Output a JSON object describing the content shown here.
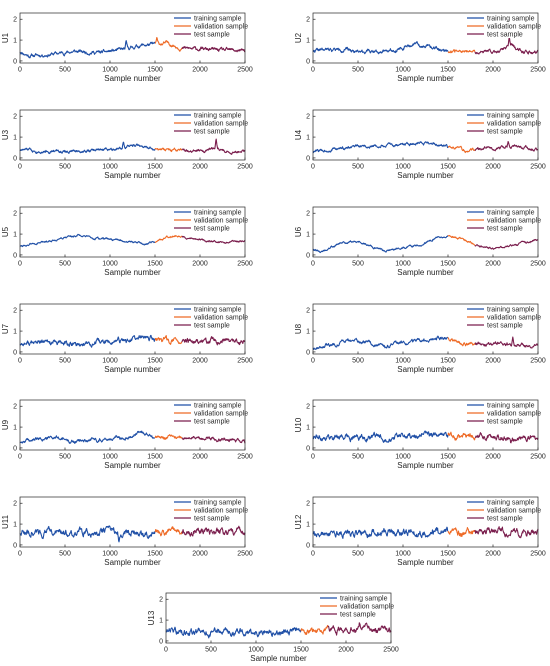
{
  "chart_data": {
    "type": "line",
    "xlabel": "Sample number",
    "x_range": [
      0,
      2500
    ],
    "x_ticks": [
      "0",
      "500",
      "1000",
      "1500",
      "2000",
      "2500"
    ],
    "y_range": [
      -0.1,
      2.3
    ],
    "y_ticks": [
      "0",
      "1",
      "2"
    ],
    "grid": false,
    "legend_position": "top-right",
    "legend": [
      "training sample",
      "validation sample",
      "test sample"
    ],
    "segments": {
      "training": [
        0,
        1500
      ],
      "validation": [
        1500,
        1800
      ],
      "test": [
        1800,
        2500
      ]
    },
    "colors": {
      "training": "#1f4fa6",
      "validation": "#ee6a26",
      "test": "#7a1e4d",
      "axis": "#262626"
    },
    "panels": [
      {
        "ylabel": "U1",
        "base": 0.45,
        "trend": [
          [
            0,
            0.45
          ],
          [
            100,
            0.25
          ],
          [
            300,
            0.3
          ],
          [
            600,
            0.45
          ],
          [
            900,
            0.4
          ],
          [
            1150,
            0.55
          ],
          [
            1350,
            0.75
          ],
          [
            1500,
            0.8
          ],
          [
            1650,
            0.85
          ],
          [
            1800,
            0.6
          ],
          [
            2100,
            0.55
          ],
          [
            2300,
            0.5
          ],
          [
            2500,
            0.5
          ]
        ],
        "noise": 0.07,
        "seed": 11,
        "spikes": [
          [
            1180,
            0.3
          ],
          [
            1520,
            0.25
          ]
        ]
      },
      {
        "ylabel": "U2",
        "base": 0.5,
        "trend": [
          [
            0,
            0.5
          ],
          [
            300,
            0.55
          ],
          [
            600,
            0.45
          ],
          [
            900,
            0.55
          ],
          [
            1150,
            0.8
          ],
          [
            1300,
            0.65
          ],
          [
            1500,
            0.5
          ],
          [
            1800,
            0.4
          ],
          [
            2100,
            0.5
          ],
          [
            2200,
            0.75
          ],
          [
            2350,
            0.45
          ],
          [
            2500,
            0.35
          ]
        ],
        "noise": 0.07,
        "seed": 22,
        "spikes": [
          [
            2180,
            0.35
          ]
        ]
      },
      {
        "ylabel": "U3",
        "base": 0.35,
        "trend": [
          [
            0,
            0.4
          ],
          [
            200,
            0.35
          ],
          [
            500,
            0.3
          ],
          [
            800,
            0.35
          ],
          [
            1100,
            0.5
          ],
          [
            1300,
            0.6
          ],
          [
            1500,
            0.4
          ],
          [
            1700,
            0.35
          ],
          [
            1900,
            0.3
          ],
          [
            2150,
            0.45
          ],
          [
            2300,
            0.3
          ],
          [
            2500,
            0.3
          ]
        ],
        "noise": 0.06,
        "seed": 33,
        "spikes": [
          [
            1150,
            0.35
          ],
          [
            2180,
            0.45
          ]
        ]
      },
      {
        "ylabel": "U4",
        "base": 0.45,
        "trend": [
          [
            0,
            0.3
          ],
          [
            300,
            0.45
          ],
          [
            600,
            0.55
          ],
          [
            900,
            0.6
          ],
          [
            1100,
            0.7
          ],
          [
            1300,
            0.75
          ],
          [
            1500,
            0.5
          ],
          [
            1700,
            0.35
          ],
          [
            1900,
            0.45
          ],
          [
            2100,
            0.5
          ],
          [
            2300,
            0.55
          ],
          [
            2500,
            0.35
          ]
        ],
        "noise": 0.06,
        "seed": 44,
        "spikes": [
          [
            2170,
            0.3
          ]
        ]
      },
      {
        "ylabel": "U5",
        "base": 0.65,
        "trend": [
          [
            0,
            0.45
          ],
          [
            200,
            0.55
          ],
          [
            500,
            0.85
          ],
          [
            650,
            0.95
          ],
          [
            800,
            0.8
          ],
          [
            1100,
            0.7
          ],
          [
            1400,
            0.55
          ],
          [
            1550,
            0.7
          ],
          [
            1700,
            0.95
          ],
          [
            1850,
            0.85
          ],
          [
            2100,
            0.65
          ],
          [
            2300,
            0.6
          ],
          [
            2500,
            0.7
          ]
        ],
        "noise": 0.04,
        "seed": 55,
        "spikes": []
      },
      {
        "ylabel": "U6",
        "base": 0.5,
        "trend": [
          [
            0,
            0.3
          ],
          [
            100,
            0.15
          ],
          [
            300,
            0.55
          ],
          [
            450,
            0.65
          ],
          [
            600,
            0.5
          ],
          [
            800,
            0.2
          ],
          [
            1000,
            0.35
          ],
          [
            1200,
            0.5
          ],
          [
            1400,
            0.85
          ],
          [
            1500,
            0.9
          ],
          [
            1650,
            0.75
          ],
          [
            1800,
            0.5
          ],
          [
            2000,
            0.3
          ],
          [
            2200,
            0.45
          ],
          [
            2350,
            0.6
          ],
          [
            2500,
            0.75
          ]
        ],
        "noise": 0.04,
        "seed": 66,
        "spikes": []
      },
      {
        "ylabel": "U7",
        "base": 0.45,
        "trend": [
          [
            0,
            0.4
          ],
          [
            300,
            0.45
          ],
          [
            600,
            0.35
          ],
          [
            900,
            0.45
          ],
          [
            1200,
            0.55
          ],
          [
            1400,
            0.7
          ],
          [
            1500,
            0.6
          ],
          [
            1700,
            0.55
          ],
          [
            1800,
            0.45
          ],
          [
            2100,
            0.5
          ],
          [
            2300,
            0.5
          ],
          [
            2500,
            0.45
          ]
        ],
        "noise": 0.1,
        "seed": 77,
        "spikes": []
      },
      {
        "ylabel": "U8",
        "base": 0.45,
        "trend": [
          [
            0,
            0.2
          ],
          [
            200,
            0.35
          ],
          [
            400,
            0.55
          ],
          [
            600,
            0.45
          ],
          [
            800,
            0.25
          ],
          [
            1000,
            0.4
          ],
          [
            1200,
            0.5
          ],
          [
            1400,
            0.7
          ],
          [
            1500,
            0.6
          ],
          [
            1700,
            0.35
          ],
          [
            1900,
            0.35
          ],
          [
            2100,
            0.4
          ],
          [
            2300,
            0.35
          ],
          [
            2500,
            0.3
          ]
        ],
        "noise": 0.07,
        "seed": 88,
        "spikes": [
          [
            2220,
            0.3
          ]
        ]
      },
      {
        "ylabel": "U9",
        "base": 0.45,
        "trend": [
          [
            0,
            0.3
          ],
          [
            200,
            0.4
          ],
          [
            400,
            0.5
          ],
          [
            600,
            0.3
          ],
          [
            800,
            0.4
          ],
          [
            1000,
            0.45
          ],
          [
            1200,
            0.55
          ],
          [
            1350,
            0.75
          ],
          [
            1500,
            0.5
          ],
          [
            1700,
            0.55
          ],
          [
            1800,
            0.45
          ],
          [
            2000,
            0.5
          ],
          [
            2200,
            0.45
          ],
          [
            2400,
            0.35
          ],
          [
            2500,
            0.25
          ]
        ],
        "noise": 0.07,
        "seed": 99,
        "spikes": []
      },
      {
        "ylabel": "U10",
        "base": 0.5,
        "trend": [
          [
            0,
            0.5
          ],
          [
            300,
            0.55
          ],
          [
            600,
            0.5
          ],
          [
            900,
            0.55
          ],
          [
            1200,
            0.6
          ],
          [
            1500,
            0.6
          ],
          [
            1800,
            0.55
          ],
          [
            2100,
            0.5
          ],
          [
            2300,
            0.5
          ],
          [
            2500,
            0.45
          ]
        ],
        "noise": 0.11,
        "seed": 111,
        "spikes": [
          [
            2200,
            -0.3
          ]
        ]
      },
      {
        "ylabel": "U11",
        "base": 0.6,
        "trend": [
          [
            0,
            0.6
          ],
          [
            300,
            0.6
          ],
          [
            600,
            0.6
          ],
          [
            900,
            0.65
          ],
          [
            1200,
            0.6
          ],
          [
            1500,
            0.6
          ],
          [
            1800,
            0.65
          ],
          [
            2100,
            0.65
          ],
          [
            2500,
            0.6
          ]
        ],
        "noise": 0.13,
        "seed": 122,
        "spikes": [
          [
            1100,
            -0.35
          ]
        ]
      },
      {
        "ylabel": "U12",
        "base": 0.6,
        "trend": [
          [
            0,
            0.6
          ],
          [
            300,
            0.6
          ],
          [
            600,
            0.55
          ],
          [
            900,
            0.6
          ],
          [
            1200,
            0.6
          ],
          [
            1500,
            0.6
          ],
          [
            1800,
            0.65
          ],
          [
            2100,
            0.65
          ],
          [
            2500,
            0.6
          ]
        ],
        "noise": 0.13,
        "seed": 133,
        "spikes": [
          [
            1050,
            -0.35
          ]
        ]
      },
      {
        "ylabel": "U13",
        "base": 0.45,
        "trend": [
          [
            0,
            0.5
          ],
          [
            300,
            0.45
          ],
          [
            600,
            0.4
          ],
          [
            900,
            0.45
          ],
          [
            1200,
            0.45
          ],
          [
            1500,
            0.45
          ],
          [
            1800,
            0.55
          ],
          [
            2100,
            0.5
          ],
          [
            2300,
            0.55
          ],
          [
            2500,
            0.45
          ]
        ],
        "noise": 0.12,
        "seed": 144,
        "spikes": [
          [
            2150,
            0.4
          ]
        ]
      }
    ]
  }
}
